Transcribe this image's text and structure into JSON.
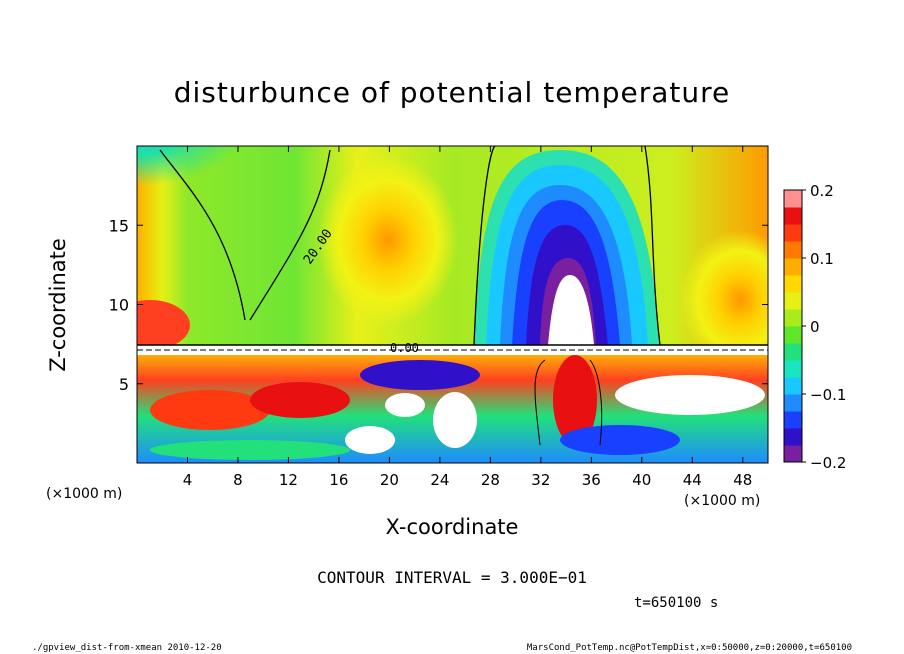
{
  "chart_data": {
    "type": "heatmap",
    "title": "disturbunce of potential temperature",
    "xlabel": "X-coordinate",
    "ylabel": "Z-coordinate",
    "x_unit_left": "(×1000 m)",
    "x_unit_right": "(×1000 m)",
    "xlim": [
      0,
      50
    ],
    "ylim": [
      0,
      20
    ],
    "xticks": [
      4,
      8,
      12,
      16,
      20,
      24,
      28,
      32,
      36,
      40,
      44,
      48
    ],
    "xtick_labels": [
      "4",
      "8",
      "12",
      "16",
      "20",
      "24",
      "28",
      "32",
      "36",
      "40",
      "44",
      "48"
    ],
    "yticks": [
      5,
      10,
      15
    ],
    "ytick_labels": [
      "5",
      "10",
      "15"
    ],
    "colorbar": {
      "range": [
        -0.2,
        0.2
      ],
      "ticks": [
        0.2,
        0.1,
        0,
        -0.1,
        -0.2
      ],
      "tick_labels": [
        "0.2",
        "0.1",
        "0",
        "−0.1",
        "−0.2"
      ],
      "colors": [
        "#7a1fa0",
        "#3010c8",
        "#1a40ff",
        "#1e8cff",
        "#19c8ff",
        "#18e6c0",
        "#22e07a",
        "#5fe62a",
        "#a8ec1c",
        "#e6f014",
        "#ffd800",
        "#ffae00",
        "#ff7a00",
        "#ff3a10",
        "#e81010",
        "#ff9090"
      ]
    },
    "contour_labels": [
      "0.00",
      "20.00"
    ],
    "contour_interval_text": "CONTOUR INTERVAL = 3.000E−01"
  },
  "time_text": "t=650100 s",
  "footer_left": "./gpview_dist-from-xmean  2010-12-20",
  "footer_right": "MarsCond_PotTemp.nc@PotTempDist,x=0:50000,z=0:20000,t=650100"
}
